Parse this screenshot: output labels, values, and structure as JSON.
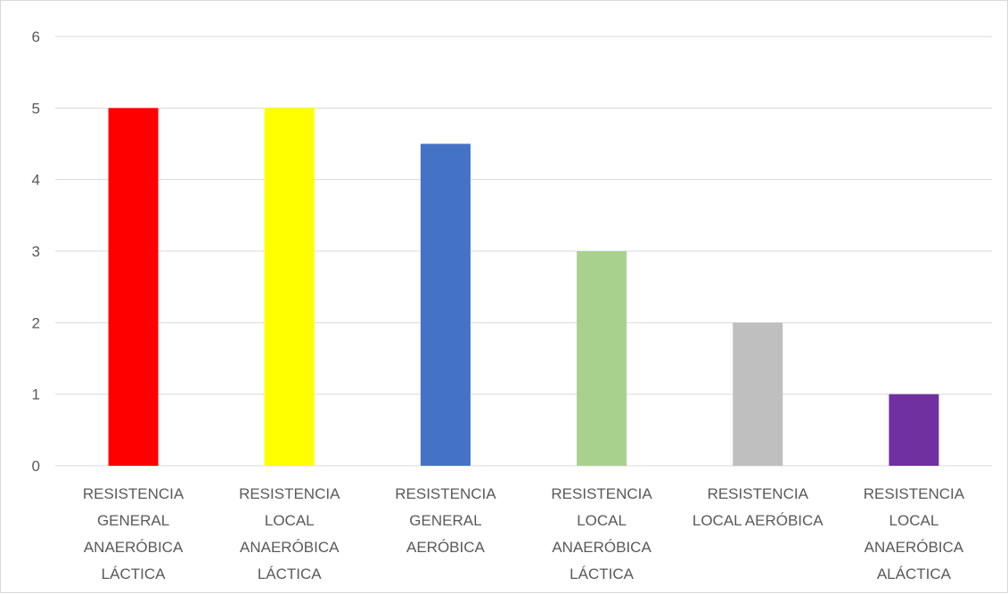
{
  "chart_data": {
    "type": "bar",
    "categories": [
      [
        "RESISTENCIA",
        "GENERAL",
        "ANAERÓBICA",
        "LÁCTICA"
      ],
      [
        "RESISTENCIA",
        "LOCAL",
        "ANAERÓBICA",
        "LÁCTICA"
      ],
      [
        "RESISTENCIA",
        "GENERAL",
        "AERÓBICA"
      ],
      [
        "RESISTENCIA",
        "LOCAL",
        "ANAERÓBICA",
        "LÁCTICA"
      ],
      [
        "RESISTENCIA",
        "LOCAL AERÓBICA"
      ],
      [
        "RESISTENCIA",
        "LOCAL",
        "ANAERÓBICA",
        "ALÁCTICA"
      ]
    ],
    "values": [
      5,
      5,
      4.5,
      3,
      2,
      1
    ],
    "colors": [
      "#ff0000",
      "#ffff00",
      "#4472c4",
      "#a9d18e",
      "#bfbfbf",
      "#7030a0"
    ],
    "ylim": [
      0,
      6
    ],
    "yticks": [
      "0",
      "1",
      "2",
      "3",
      "4",
      "5",
      "6"
    ],
    "grid": true,
    "legend": "none"
  }
}
